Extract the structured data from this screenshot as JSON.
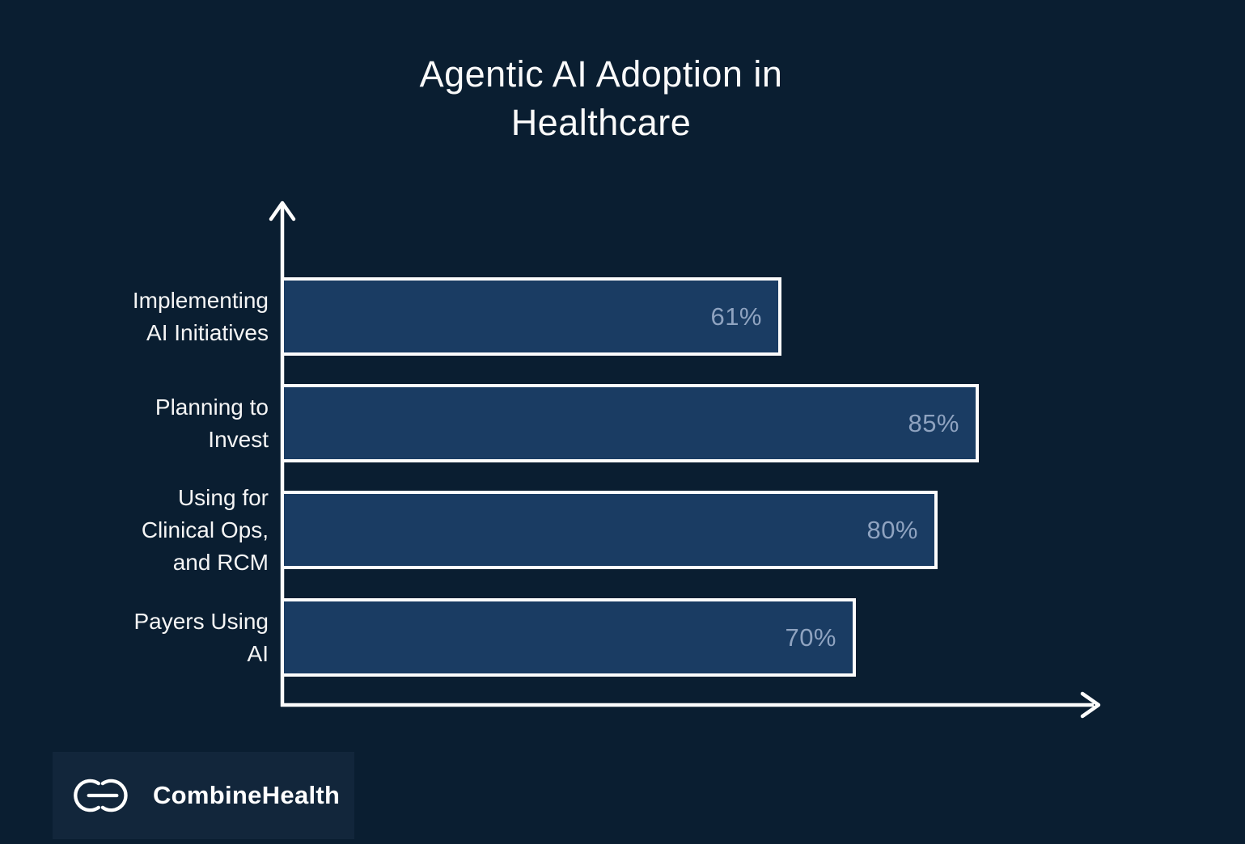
{
  "chart_data": {
    "type": "bar",
    "orientation": "horizontal",
    "title": "Agentic AI Adoption in Healthcare",
    "title_lines": [
      "Agentic AI Adoption in",
      "Healthcare"
    ],
    "categories": [
      "Implementing AI Initiatives",
      "Planning to Invest",
      "Using for Clinical Ops, and RCM",
      "Payers Using AI"
    ],
    "category_lines": [
      [
        "Implementing",
        "AI Initiatives"
      ],
      [
        "Planning to",
        "Invest"
      ],
      [
        "Using for",
        "Clinical Ops,",
        "and RCM"
      ],
      [
        "Payers Using",
        "AI"
      ]
    ],
    "values": [
      61,
      85,
      80,
      70
    ],
    "value_labels": [
      "61%",
      "85%",
      "80%",
      "70%"
    ],
    "xlim": [
      0,
      100
    ],
    "grid": false,
    "legend": null,
    "axis_arrows": true
  },
  "logo": {
    "brand_regular": "Combine",
    "brand_bold": "Health",
    "icon": "combinehealth-ch-icon"
  },
  "colors": {
    "background": "#0a1e31",
    "bar_fill": "#1a3c63",
    "bar_border": "#fcfcfc",
    "value_text": "#8fa3c0",
    "title_text": "#fafafa",
    "label_text": "#f5f5f5",
    "logo_bg": "#12263b",
    "logo_text": "#ffffff"
  }
}
